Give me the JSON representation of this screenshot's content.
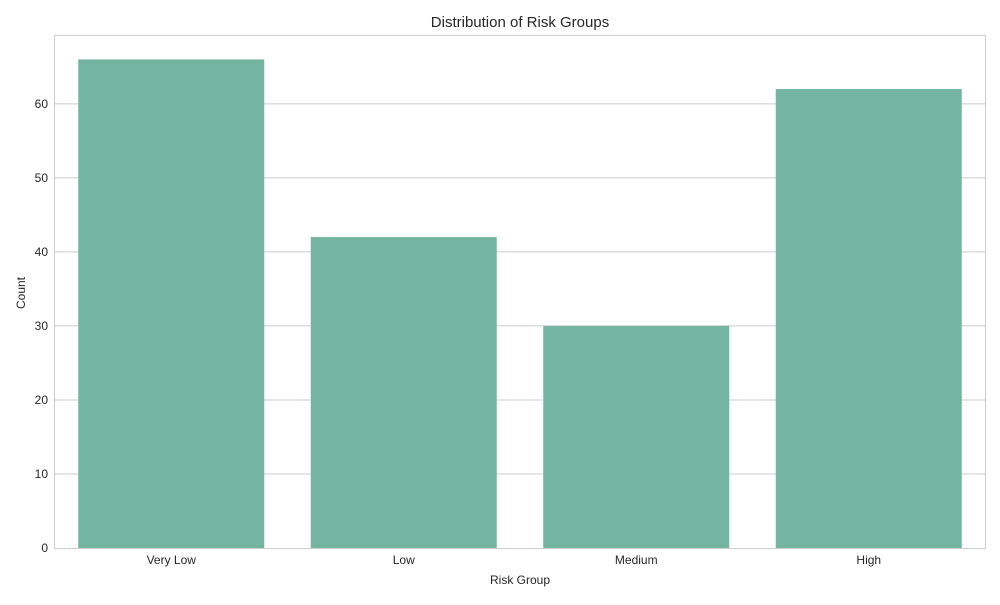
{
  "chart_data": {
    "type": "bar",
    "title": "Distribution of Risk Groups",
    "xlabel": "Risk Group",
    "ylabel": "Count",
    "categories": [
      "Very Low",
      "Low",
      "Medium",
      "High"
    ],
    "values": [
      66,
      42,
      30,
      62
    ],
    "ylim": [
      0,
      69.3
    ],
    "yticks": [
      0,
      10,
      20,
      30,
      40,
      50,
      60
    ],
    "grid": true,
    "bar_color": "#73b5a0",
    "legend": "none"
  }
}
